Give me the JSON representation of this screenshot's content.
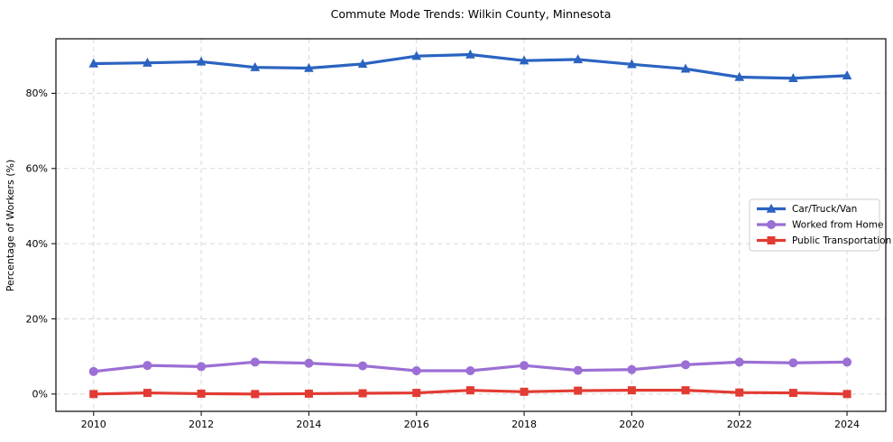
{
  "chart_data": {
    "type": "line",
    "title": "Commute Mode Trends: Wilkin County, Minnesota",
    "xlabel": "",
    "ylabel": "Percentage of Workers (%)",
    "x": [
      2010,
      2011,
      2012,
      2013,
      2014,
      2015,
      2016,
      2017,
      2018,
      2019,
      2020,
      2021,
      2022,
      2023,
      2024
    ],
    "x_ticks": [
      2010,
      2012,
      2014,
      2016,
      2018,
      2020,
      2022,
      2024
    ],
    "x_tick_labels": [
      "2010",
      "2012",
      "2014",
      "2016",
      "2018",
      "2020",
      "2022",
      "2024"
    ],
    "y_ticks": [
      0,
      20,
      40,
      60,
      80
    ],
    "y_tick_labels": [
      "0%",
      "20%",
      "40%",
      "60%",
      "80%"
    ],
    "xlim": [
      2009.3,
      2024.72
    ],
    "ylim": [
      -4.6,
      94.5
    ],
    "grid": true,
    "grid_color": "#d7d7d7",
    "background_color": "#ffffff",
    "spine_color": "#1a1a1a",
    "legend_position": "center right",
    "series": [
      {
        "name": "Car/Truck/Van",
        "color": "#2b63c1",
        "marker": "triangle",
        "values": [
          87.9,
          88.1,
          88.4,
          86.9,
          86.7,
          87.8,
          89.9,
          90.3,
          88.7,
          89.0,
          87.7,
          86.5,
          84.3,
          84.0,
          84.7
        ]
      },
      {
        "name": "Worked from Home",
        "color": "#9b6fd4",
        "marker": "circle",
        "values": [
          6.0,
          7.6,
          7.3,
          8.5,
          8.2,
          7.5,
          6.2,
          6.2,
          7.6,
          6.3,
          6.5,
          7.8,
          8.5,
          8.3,
          8.5
        ]
      },
      {
        "name": "Public Transportation",
        "color": "#e23b33",
        "marker": "square",
        "values": [
          0.0,
          0.3,
          0.1,
          0.0,
          0.1,
          0.2,
          0.3,
          1.0,
          0.6,
          0.9,
          1.0,
          1.0,
          0.4,
          0.3,
          0.0
        ]
      }
    ]
  }
}
